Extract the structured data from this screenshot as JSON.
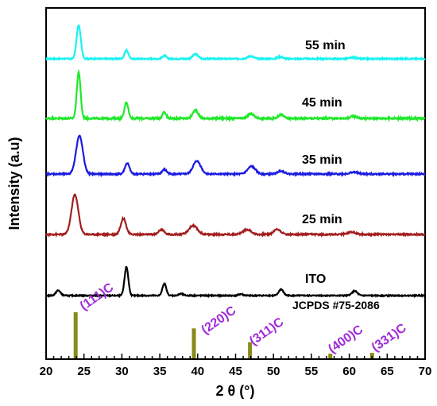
{
  "chart_data": {
    "type": "line",
    "xlabel": "2 θ (°)",
    "ylabel": "Intensity (a.u)",
    "xlim": [
      20,
      70
    ],
    "xticks": [
      20,
      25,
      30,
      35,
      40,
      45,
      50,
      55,
      60,
      65,
      70
    ],
    "yticks_shown": false,
    "grid": false,
    "series": [
      {
        "name": "55 min",
        "color": "#19f2f2",
        "baseline": 0.0,
        "peaks": [
          [
            24.3,
            1.0,
            0.28
          ],
          [
            30.6,
            0.26,
            0.25
          ],
          [
            35.6,
            0.1,
            0.25
          ],
          [
            39.7,
            0.14,
            0.35
          ],
          [
            47.0,
            0.08,
            0.4
          ],
          [
            50.9,
            0.06,
            0.35
          ],
          [
            60.5,
            0.04,
            0.4
          ]
        ]
      },
      {
        "name": "45 min",
        "color": "#21e82c",
        "baseline": 0.0,
        "peaks": [
          [
            24.3,
            1.0,
            0.25
          ],
          [
            30.6,
            0.35,
            0.25
          ],
          [
            35.6,
            0.14,
            0.25
          ],
          [
            39.7,
            0.18,
            0.35
          ],
          [
            47.0,
            0.1,
            0.4
          ],
          [
            51.0,
            0.08,
            0.35
          ],
          [
            60.6,
            0.05,
            0.4
          ]
        ]
      },
      {
        "name": "35 min",
        "color": "#1b1be2",
        "baseline": 0.0,
        "peaks": [
          [
            24.4,
            1.0,
            0.45
          ],
          [
            30.7,
            0.28,
            0.3
          ],
          [
            35.6,
            0.12,
            0.3
          ],
          [
            39.9,
            0.34,
            0.5
          ],
          [
            47.1,
            0.2,
            0.5
          ],
          [
            51.0,
            0.08,
            0.45
          ],
          [
            60.6,
            0.05,
            0.5
          ]
        ]
      },
      {
        "name": "25 min",
        "color": "#a31f1f",
        "baseline": 0.0,
        "peaks": [
          [
            23.8,
            1.0,
            0.45
          ],
          [
            30.2,
            0.4,
            0.35
          ],
          [
            35.2,
            0.12,
            0.35
          ],
          [
            39.4,
            0.22,
            0.55
          ],
          [
            46.5,
            0.12,
            0.55
          ],
          [
            50.5,
            0.13,
            0.45
          ],
          [
            60.3,
            0.06,
            0.5
          ]
        ]
      },
      {
        "name": "ITO",
        "color": "#000000",
        "baseline": 0.0,
        "peaks": [
          [
            21.6,
            0.18,
            0.3
          ],
          [
            30.6,
            1.0,
            0.25
          ],
          [
            35.6,
            0.42,
            0.25
          ],
          [
            37.8,
            0.06,
            0.3
          ],
          [
            45.7,
            0.05,
            0.3
          ],
          [
            51.0,
            0.22,
            0.3
          ],
          [
            60.7,
            0.16,
            0.35
          ]
        ]
      }
    ],
    "reference": {
      "name": "JCPDS #75-2086",
      "color": "#8a8a1c",
      "sticks": [
        {
          "x": 23.9,
          "rel": 1.0,
          "label": "(111)C"
        },
        {
          "x": 39.5,
          "rel": 0.65,
          "label": "(220)C"
        },
        {
          "x": 46.9,
          "rel": 0.35,
          "label": "(311)C"
        },
        {
          "x": 57.5,
          "rel": 0.1,
          "label": "(400)C"
        },
        {
          "x": 63.0,
          "rel": 0.12,
          "label": "(331)C"
        }
      ]
    }
  }
}
